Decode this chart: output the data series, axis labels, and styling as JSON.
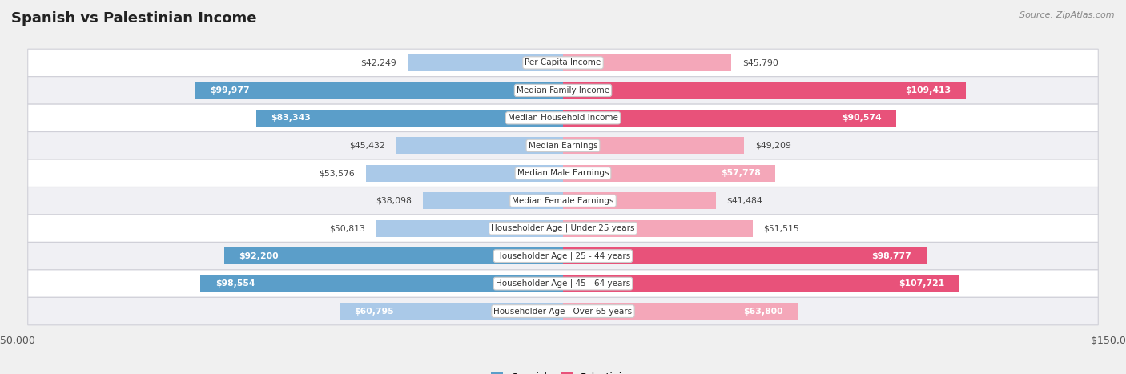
{
  "title": "Spanish vs Palestinian Income",
  "source": "Source: ZipAtlas.com",
  "categories": [
    "Per Capita Income",
    "Median Family Income",
    "Median Household Income",
    "Median Earnings",
    "Median Male Earnings",
    "Median Female Earnings",
    "Householder Age | Under 25 years",
    "Householder Age | 25 - 44 years",
    "Householder Age | 45 - 64 years",
    "Householder Age | Over 65 years"
  ],
  "spanish_values": [
    42249,
    99977,
    83343,
    45432,
    53576,
    38098,
    50813,
    92200,
    98554,
    60795
  ],
  "palestinian_values": [
    45790,
    109413,
    90574,
    49209,
    57778,
    41484,
    51515,
    98777,
    107721,
    63800
  ],
  "spanish_labels": [
    "$42,249",
    "$99,977",
    "$83,343",
    "$45,432",
    "$53,576",
    "$38,098",
    "$50,813",
    "$92,200",
    "$98,554",
    "$60,795"
  ],
  "palestinian_labels": [
    "$45,790",
    "$109,413",
    "$90,574",
    "$49,209",
    "$57,778",
    "$41,484",
    "$51,515",
    "$98,777",
    "$107,721",
    "$63,800"
  ],
  "spanish_color_light": "#aac9e8",
  "spanish_color_dark": "#5b9ec9",
  "palestinian_color_light": "#f4a7b9",
  "palestinian_color_dark": "#e8527a",
  "inside_threshold": 75000,
  "max_val": 150000,
  "bar_height": 0.62,
  "legend_labels": [
    "Spanish",
    "Palestinian"
  ],
  "legend_colors_light": [
    "#aac9e8",
    "#f4a7b9"
  ],
  "legend_colors_dark": [
    "#5b9ec9",
    "#e8527a"
  ],
  "row_colors": [
    "#f7f7f7",
    "#efefef"
  ],
  "fig_bg": "#f0f0f0"
}
